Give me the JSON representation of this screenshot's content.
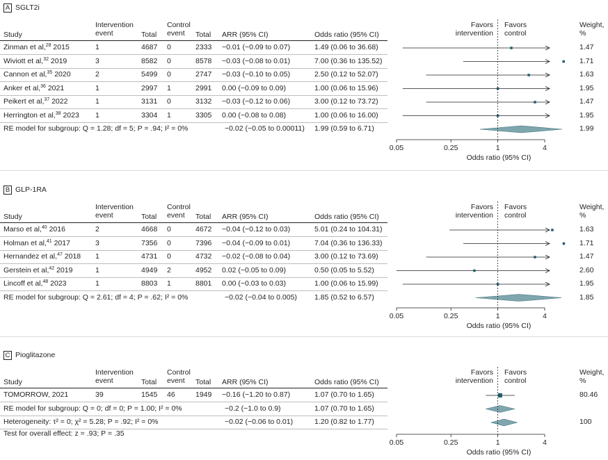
{
  "chart_data": [
    {
      "type": "forest",
      "panel": "A",
      "title": "SGLT2i",
      "columns": [
        "Study",
        "Intervention event",
        "Total",
        "Control event",
        "Total",
        "ARR (95% CI)",
        "Odds ratio (95% CI)",
        "Weight, %"
      ],
      "favors_left": "Favors intervention",
      "favors_right": "Favors control",
      "xlabel": "Odds ratio (95% CI)",
      "xscale": "log",
      "xticks": [
        "0.05",
        "0.25",
        "1",
        "4"
      ],
      "xlim": [
        0.05,
        4
      ],
      "rows": [
        {
          "study": "Zinman et al,",
          "ref": "28",
          "year": "2015",
          "int_event": "1",
          "int_total": "4687",
          "ctl_event": "0",
          "ctl_total": "2333",
          "arr": "−0.01 (−0.09 to 0.07)",
          "or_text": "1.49 (0.06 to 36.68)",
          "or": 1.49,
          "lo": 0.06,
          "hi": 36.68,
          "weight": "1.47"
        },
        {
          "study": "Wiviott et al,",
          "ref": "32",
          "year": "2019",
          "int_event": "3",
          "int_total": "8582",
          "ctl_event": "0",
          "ctl_total": "8578",
          "arr": "−0.03 (−0.08 to 0.01)",
          "or_text": "7.00 (0.36 to 135.52)",
          "or": 7.0,
          "lo": 0.36,
          "hi": 135.52,
          "weight": "1.71"
        },
        {
          "study": "Cannon et al,",
          "ref": "35",
          "year": "2020",
          "int_event": "2",
          "int_total": "5499",
          "ctl_event": "0",
          "ctl_total": "2747",
          "arr": "−0.03 (−0.10 to 0.05)",
          "or_text": "2.50 (0.12 to 52.07)",
          "or": 2.5,
          "lo": 0.12,
          "hi": 52.07,
          "weight": "1.63"
        },
        {
          "study": "Anker et al,",
          "ref": "36",
          "year": "2021",
          "int_event": "1",
          "int_total": "2997",
          "ctl_event": "1",
          "ctl_total": "2991",
          "arr": "0.00 (−0.09 to 0.09)",
          "or_text": "1.00 (0.06 to 15.96)",
          "or": 1.0,
          "lo": 0.06,
          "hi": 15.96,
          "weight": "1.95"
        },
        {
          "study": "Peikert et al,",
          "ref": "37",
          "year": "2022",
          "int_event": "1",
          "int_total": "3131",
          "ctl_event": "0",
          "ctl_total": "3132",
          "arr": "−0.03 (−0.12 to 0.06)",
          "or_text": "3.00 (0.12 to 73.72)",
          "or": 3.0,
          "lo": 0.12,
          "hi": 73.72,
          "weight": "1.47"
        },
        {
          "study": "Herrington et al,",
          "ref": "38",
          "year": "2023",
          "int_event": "1",
          "int_total": "3304",
          "ctl_event": "1",
          "ctl_total": "3305",
          "arr": "0.00 (−0.08 to 0.08)",
          "or_text": "1.00 (0.06 to 16.00)",
          "or": 1.0,
          "lo": 0.06,
          "hi": 16.0,
          "weight": "1.95"
        }
      ],
      "summaries": [
        {
          "label": "RE model for subgroup: Q = 1.28; df = 5; P = .94; I² = 0%",
          "arr": "−0.02 (−0.05 to 0.00011)",
          "or_text": "1.99 (0.59 to 6.71)",
          "or": 1.99,
          "lo": 0.59,
          "hi": 6.71,
          "weight": "1.99"
        }
      ]
    },
    {
      "type": "forest",
      "panel": "B",
      "title": "GLP-1RA",
      "columns": [
        "Study",
        "Intervention event",
        "Total",
        "Control event",
        "Total",
        "ARR (95% CI)",
        "Odds ratio (95% CI)",
        "Weight, %"
      ],
      "favors_left": "Favors intervention",
      "favors_right": "Favors control",
      "xlabel": "Odds ratio (95% CI)",
      "xscale": "log",
      "xticks": [
        "0.05",
        "0.25",
        "1",
        "4"
      ],
      "xlim": [
        0.05,
        4
      ],
      "rows": [
        {
          "study": "Marso et al,",
          "ref": "40",
          "year": "2016",
          "int_event": "2",
          "int_total": "4668",
          "ctl_event": "0",
          "ctl_total": "4672",
          "arr": "−0.04 (−0.12 to 0.03)",
          "or_text": "5.01 (0.24 to 104.31)",
          "or": 5.01,
          "lo": 0.24,
          "hi": 104.31,
          "weight": "1.63"
        },
        {
          "study": "Holman et al,",
          "ref": "41",
          "year": "2017",
          "int_event": "3",
          "int_total": "7356",
          "ctl_event": "0",
          "ctl_total": "7396",
          "arr": "−0.04 (−0.09 to 0.01)",
          "or_text": "7.04 (0.36 to 136.33)",
          "or": 7.04,
          "lo": 0.36,
          "hi": 136.33,
          "weight": "1.71"
        },
        {
          "study": "Hernandez et al,",
          "ref": "47",
          "year": "2018",
          "int_event": "1",
          "int_total": "4731",
          "ctl_event": "0",
          "ctl_total": "4732",
          "arr": "−0.02 (−0.08 to 0.04)",
          "or_text": "3.00 (0.12 to 73.69)",
          "or": 3.0,
          "lo": 0.12,
          "hi": 73.69,
          "weight": "1.47"
        },
        {
          "study": "Gerstein et al,",
          "ref": "42",
          "year": "2019",
          "int_event": "1",
          "int_total": "4949",
          "ctl_event": "2",
          "ctl_total": "4952",
          "arr": "0.02 (−0.05 to 0.09)",
          "or_text": "0.50 (0.05 to 5.52)",
          "or": 0.5,
          "lo": 0.05,
          "hi": 5.52,
          "weight": "2.60"
        },
        {
          "study": "Lincoff et al,",
          "ref": "48",
          "year": "2023",
          "int_event": "1",
          "int_total": "8803",
          "ctl_event": "1",
          "ctl_total": "8801",
          "arr": "0.00 (−0.03 to 0.03)",
          "or_text": "1.00 (0.06 to 15.99)",
          "or": 1.0,
          "lo": 0.06,
          "hi": 15.99,
          "weight": "1.95"
        }
      ],
      "summaries": [
        {
          "label": "RE model for subgroup: Q = 2.61; df = 4; P = .62; I² = 0%",
          "arr": "−0.02 (−0.04 to 0.005)",
          "or_text": "1.85 (0.52 to 6.57)",
          "or": 1.85,
          "lo": 0.52,
          "hi": 6.57,
          "weight": "1.85"
        }
      ]
    },
    {
      "type": "forest",
      "panel": "C",
      "title": "Pioglitazone",
      "columns": [
        "Study",
        "Intervention event",
        "Total",
        "Control event",
        "Total",
        "ARR (95% CI)",
        "Odds ratio (95% CI)",
        "Weight, %"
      ],
      "favors_left": "Favors intervention",
      "favors_right": "Favors control",
      "xlabel": "Odds ratio (95% CI)",
      "xscale": "log",
      "xticks": [
        "0.05",
        "0.25",
        "1",
        "4"
      ],
      "xlim": [
        0.05,
        4
      ],
      "rows": [
        {
          "study": "TOMORROW, 2021",
          "ref": "",
          "year": "",
          "int_event": "39",
          "int_total": "1545",
          "ctl_event": "46",
          "ctl_total": "1949",
          "arr": "−0.16 (−1.20 to 0.87)",
          "or_text": "1.07 (0.70 to 1.65)",
          "or": 1.07,
          "lo": 0.7,
          "hi": 1.65,
          "weight": "80.46"
        }
      ],
      "summaries": [
        {
          "label": "RE model for subgroup: Q = 0; df = 0; P = 1.00; I² = 0%",
          "arr": "−0.2 (−1.0 to 0.9)",
          "or_text": "1.07 (0.70 to 1.65)",
          "or": 1.07,
          "lo": 0.7,
          "hi": 1.65,
          "weight": ""
        },
        {
          "label": "Heterogeneity: τ² = 0; χ² = 5.28; P = .92; I² = 0%",
          "arr": "−0.02 (−0.06 to 0.01)",
          "or_text": "1.20 (0.82 to 1.77)",
          "or": 1.2,
          "lo": 0.82,
          "hi": 1.77,
          "weight": "100"
        }
      ],
      "footer": "Test for overall effect: z = .93; P = .35"
    }
  ]
}
